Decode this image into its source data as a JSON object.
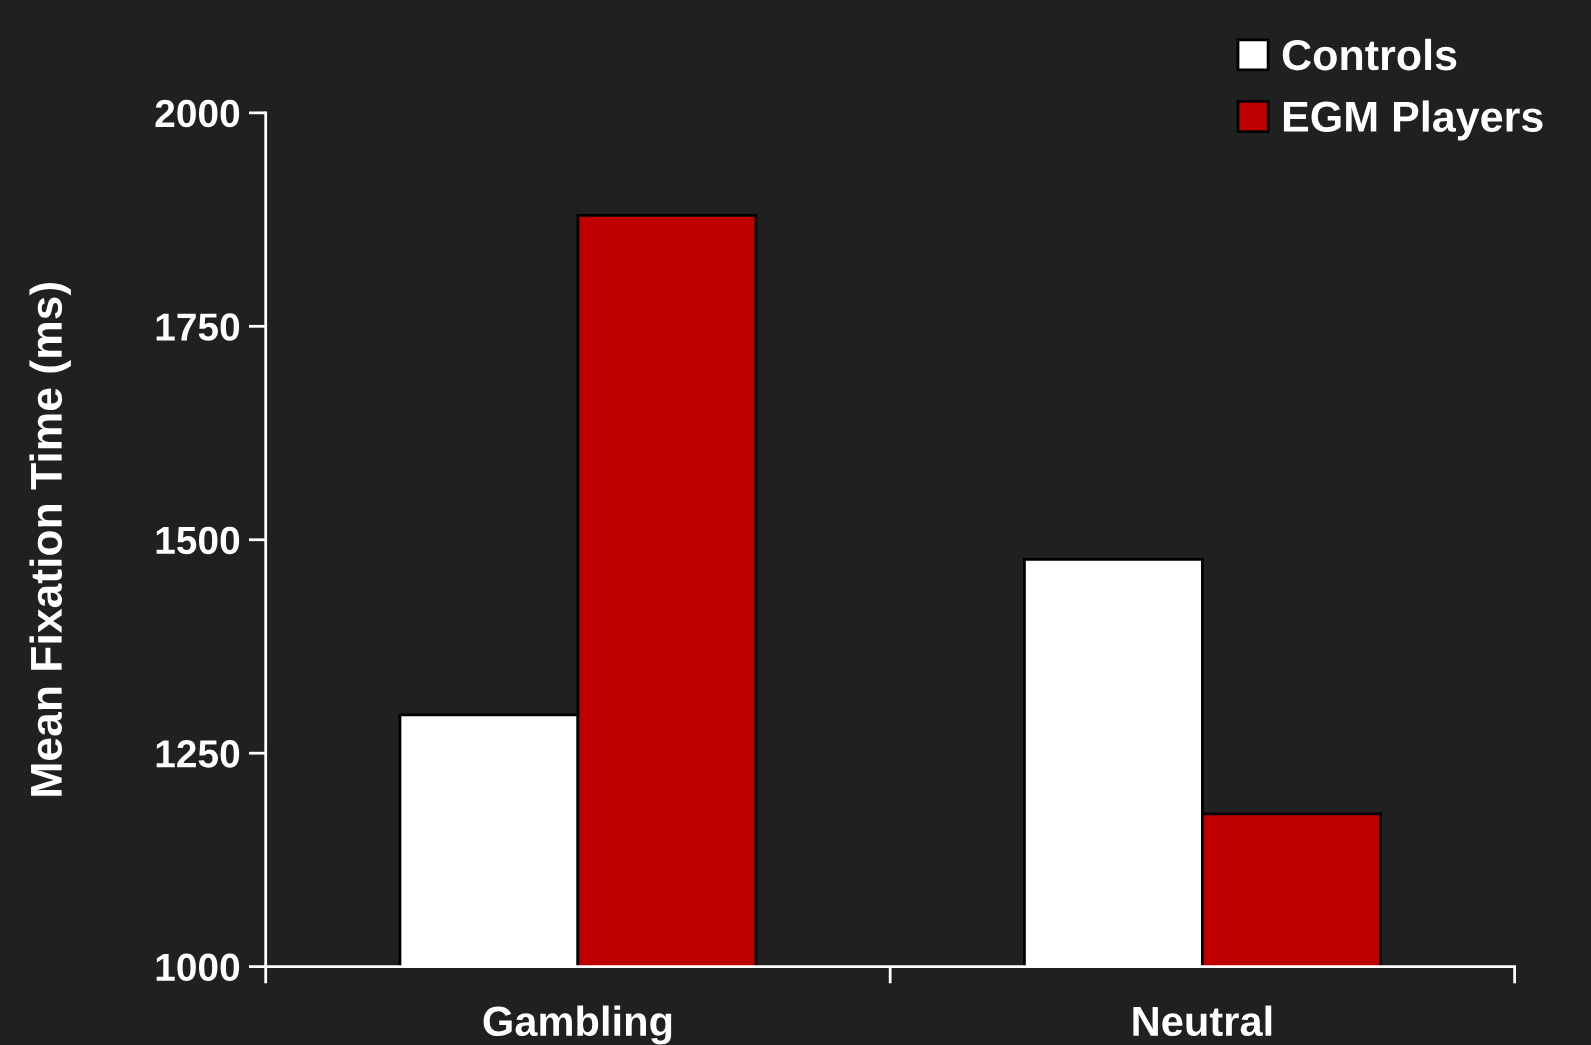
{
  "chart_data": {
    "type": "bar",
    "ylabel": "Mean Fixation Time (ms)",
    "categories": [
      "Gambling",
      "Neutral"
    ],
    "series": [
      {
        "name": "Controls",
        "color": "#ffffff",
        "values": [
          1295,
          1477
        ]
      },
      {
        "name": "EGM Players",
        "color": "#c00000",
        "values": [
          1880,
          1179
        ]
      }
    ],
    "ylim": [
      1000,
      2000
    ],
    "yticks": [
      1000,
      1250,
      1500,
      1750,
      2000
    ],
    "grid": false,
    "legend": "top right"
  }
}
